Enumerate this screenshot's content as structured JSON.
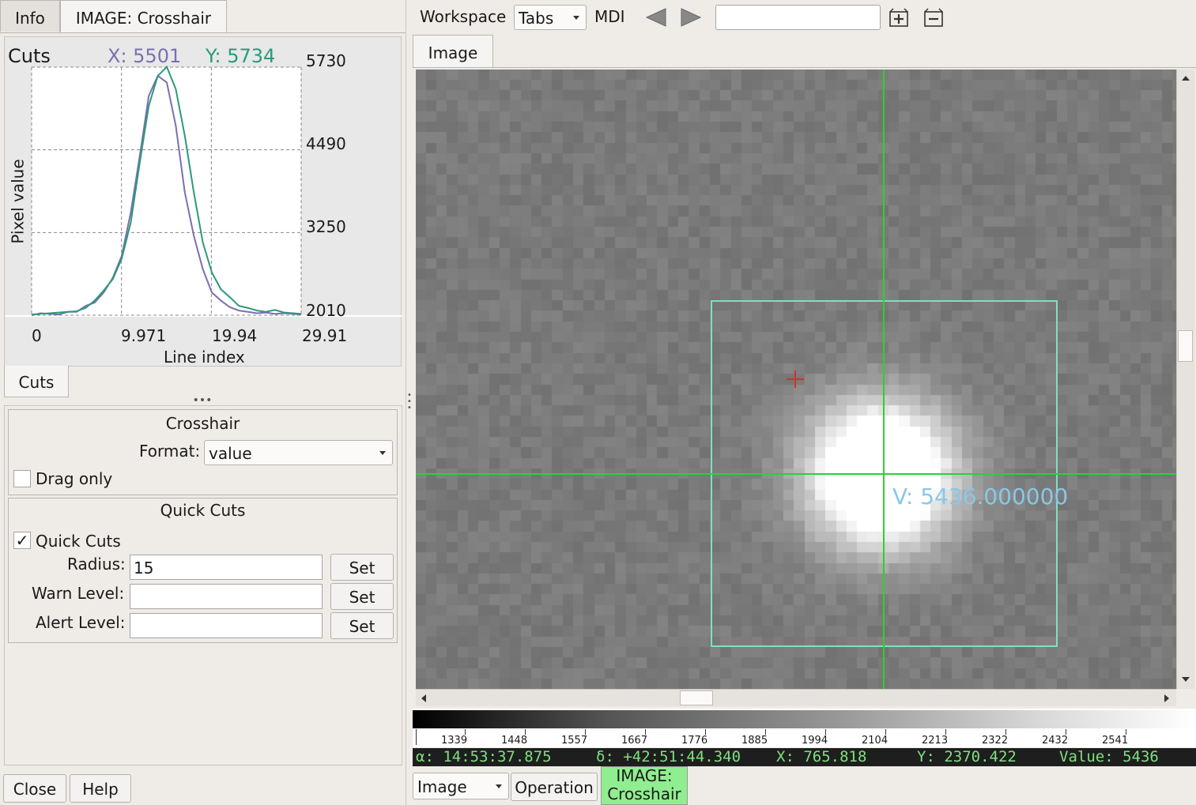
{
  "left_tabs": [
    "Info",
    "IMAGE: Crosshair"
  ],
  "cuts_plot": {
    "title": "Cuts",
    "x_readout": "X:  5501",
    "y_readout": "Y:  5734",
    "ylabel": "Pixel value",
    "xlabel": "Line index",
    "yticks": [
      "5730",
      "4490",
      "3250",
      "2010"
    ],
    "xticks": [
      "0",
      "9.971",
      "19.94",
      "29.91"
    ],
    "x_color": "#7b6fb0",
    "y_color": "#2a9a7a"
  },
  "chart_data": {
    "type": "line",
    "xlabel": "Line index",
    "ylabel": "Pixel value",
    "xlim": [
      0,
      29.91
    ],
    "ylim": [
      2010,
      5730
    ],
    "grid": true,
    "series": [
      {
        "name": "X: 5501",
        "x": [
          0,
          1,
          2,
          3,
          4,
          5,
          6,
          7,
          8,
          9,
          10,
          11,
          12,
          13,
          14,
          15,
          16,
          17,
          18,
          19,
          20,
          21,
          22,
          23,
          24,
          25,
          26,
          27,
          28,
          29,
          30
        ],
        "values": [
          2010,
          2040,
          2030,
          2020,
          2060,
          2060,
          2150,
          2200,
          2350,
          2570,
          2900,
          3550,
          4400,
          5300,
          5600,
          5500,
          4850,
          3850,
          3200,
          2700,
          2350,
          2230,
          2130,
          2080,
          2060,
          2040,
          2050,
          2030,
          2040,
          2030,
          2020
        ]
      },
      {
        "name": "Y: 5734",
        "x": [
          0,
          1,
          2,
          3,
          4,
          5,
          6,
          7,
          8,
          9,
          10,
          11,
          12,
          13,
          14,
          15,
          16,
          17,
          18,
          19,
          20,
          21,
          22,
          23,
          24,
          25,
          26,
          27,
          28,
          29,
          30
        ],
        "values": [
          2020,
          2030,
          2040,
          2050,
          2060,
          2070,
          2120,
          2230,
          2380,
          2550,
          2860,
          3400,
          4300,
          5150,
          5600,
          5734,
          5400,
          4700,
          3850,
          3100,
          2650,
          2400,
          2280,
          2150,
          2120,
          2080,
          2060,
          2090,
          2050,
          2040,
          2030
        ]
      }
    ]
  },
  "cuts_tab": "Cuts",
  "crosshair_group": {
    "title": "Crosshair",
    "format_label": "Format:",
    "format_value": "value",
    "drag_only_label": "Drag only"
  },
  "quickcuts_group": {
    "title": "Quick Cuts",
    "quickcuts_label": "Quick Cuts",
    "quickcuts_checked": "✓",
    "radius_label": "Radius:",
    "radius_value": "15",
    "warn_label": "Warn Level:",
    "warn_value": "",
    "alert_label": "Alert Level:",
    "alert_value": "",
    "set_label": "Set"
  },
  "bottom_buttons": {
    "close": "Close",
    "help": "Help"
  },
  "toolbar": {
    "workspace_label": "Workspace",
    "workspace_value": "Tabs",
    "mdi_label": "MDI",
    "search_value": ""
  },
  "image_tab": "Image",
  "viewer": {
    "value_label": "V: 5436.000000"
  },
  "colorbar": {
    "ticks": [
      "1339",
      "1448",
      "1557",
      "1667",
      "1776",
      "1885",
      "1994",
      "2104",
      "2213",
      "2322",
      "2432",
      "2541"
    ]
  },
  "status": {
    "ra": "α: 14:53:37.875",
    "dec": "δ: +42:51:44.340",
    "x": "X: 765.818",
    "y": "Y: 2370.422",
    "value": "Value: 5436"
  },
  "bottom_bar": {
    "channel_value": "Image",
    "operation_label": "Operation",
    "plugin_line1": "IMAGE:",
    "plugin_line2": "Crosshair"
  },
  "colors": {
    "crosshair": "#2fd02f",
    "box": "#7fe0c0",
    "value_text": "#87c8e8",
    "status_text": "#7fe07f",
    "plugin_tab": "#90ee90"
  }
}
